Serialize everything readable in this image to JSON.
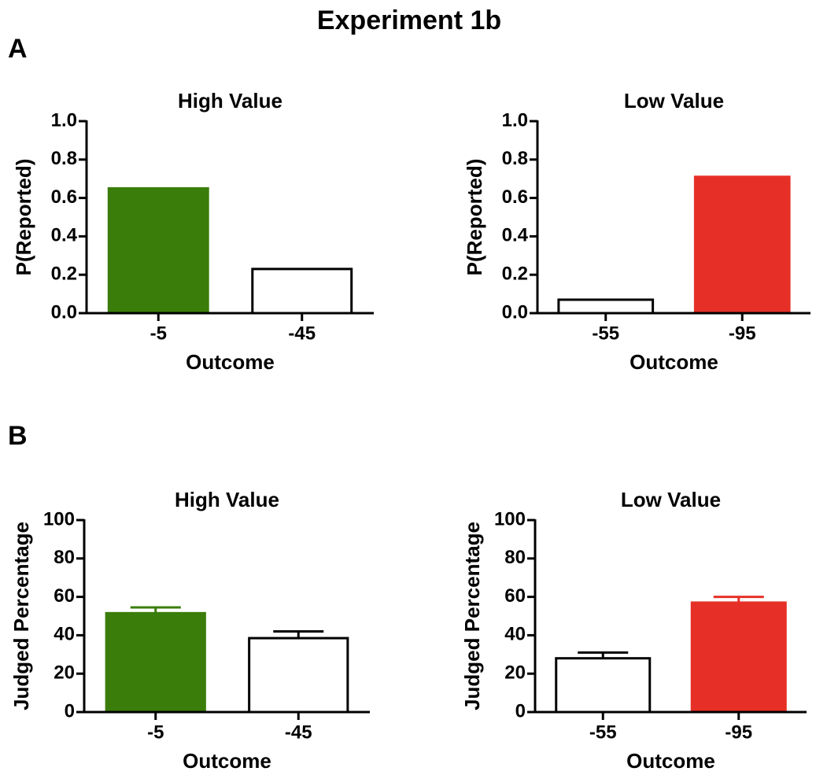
{
  "title": "Experiment 1b",
  "panel_labels": [
    "A",
    "B"
  ],
  "chart_data": [
    {
      "type": "bar",
      "title": "High Value",
      "xlabel": "Outcome",
      "ylabel": "P(Reported)",
      "categories": [
        "-5",
        "-45"
      ],
      "values": [
        0.65,
        0.23
      ],
      "colors": [
        "#3a7d0a",
        "#ffffff"
      ],
      "ylim": [
        0,
        1
      ],
      "yticks": [
        {
          "value": 0,
          "label": "0.0"
        },
        0.2,
        0.4,
        0.6,
        0.8,
        {
          "value": 1,
          "label": "1.0"
        }
      ]
    },
    {
      "type": "bar",
      "title": "Low Value",
      "xlabel": "Outcome",
      "ylabel": "P(Reported)",
      "categories": [
        "-55",
        "-95"
      ],
      "values": [
        0.07,
        0.71
      ],
      "colors": [
        "#ffffff",
        "#e63027"
      ],
      "ylim": [
        0,
        1
      ],
      "yticks": [
        {
          "value": 0,
          "label": "0.0"
        },
        0.2,
        0.4,
        0.6,
        0.8,
        {
          "value": 1,
          "label": "1.0"
        }
      ]
    },
    {
      "type": "bar",
      "title": "High Value",
      "xlabel": "Outcome",
      "ylabel": "Judged Percentage",
      "categories": [
        "-5",
        "-45"
      ],
      "values": [
        51.5,
        38.5
      ],
      "errors": [
        3,
        3.5
      ],
      "colors": [
        "#3a7d0a",
        "#ffffff"
      ],
      "ylim": [
        0,
        100
      ],
      "yticks": [
        0,
        20,
        40,
        60,
        80,
        100
      ]
    },
    {
      "type": "bar",
      "title": "Low Value",
      "xlabel": "Outcome",
      "ylabel": "Judged Percentage",
      "categories": [
        "-55",
        "-95"
      ],
      "values": [
        28,
        57
      ],
      "errors": [
        3,
        3
      ],
      "colors": [
        "#ffffff",
        "#e63027"
      ],
      "ylim": [
        0,
        100
      ],
      "yticks": [
        0,
        20,
        40,
        60,
        80,
        100
      ]
    }
  ]
}
